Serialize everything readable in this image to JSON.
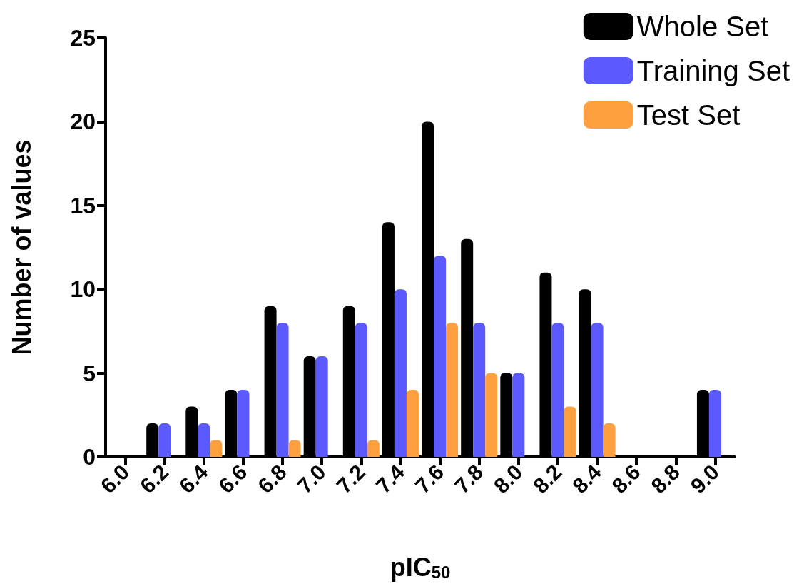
{
  "chart_data": {
    "type": "bar",
    "xlabel": "pIC$_{50}$",
    "ylabel": "Number of values",
    "categories": [
      "6.0",
      "6.2",
      "6.4",
      "6.6",
      "6.8",
      "7.0",
      "7.2",
      "7.4",
      "7.6",
      "7.8",
      "8.0",
      "8.2",
      "8.4",
      "8.6",
      "8.8",
      "9.0"
    ],
    "series": [
      {
        "name": "Whole Set",
        "color": "#000000",
        "values": [
          0,
          2,
          3,
          4,
          9,
          6,
          9,
          14,
          20,
          13,
          5,
          11,
          10,
          0,
          0,
          4
        ]
      },
      {
        "name": "Training Set",
        "color": "#5a5aff",
        "values": [
          0,
          2,
          2,
          4,
          8,
          6,
          8,
          10,
          12,
          8,
          5,
          8,
          8,
          0,
          0,
          4
        ]
      },
      {
        "name": "Test Set",
        "color": "#ffa040",
        "values": [
          0,
          0,
          1,
          0,
          1,
          0,
          1,
          4,
          8,
          5,
          0,
          3,
          2,
          0,
          0,
          0
        ]
      }
    ],
    "ylim": [
      0,
      25
    ],
    "yticks": [
      0,
      5,
      10,
      15,
      20,
      25
    ],
    "grid": false,
    "legend": "top right"
  }
}
